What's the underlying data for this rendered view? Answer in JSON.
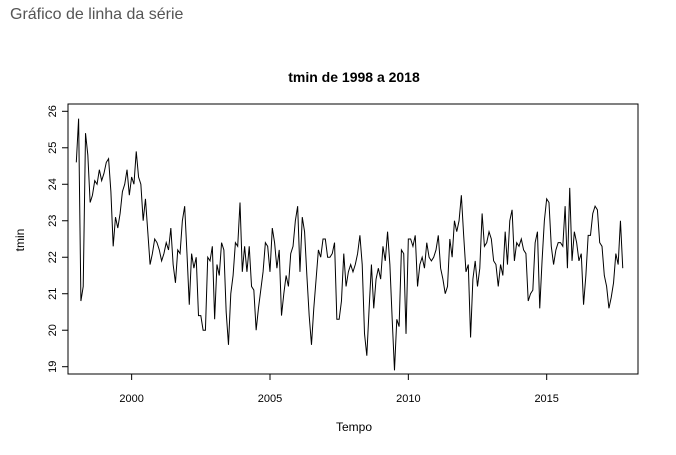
{
  "page": {
    "heading": "Gráfico de linha da série"
  },
  "chart_data": {
    "type": "line",
    "title": "tmin de 1998 a 2018",
    "xlabel": "Tempo",
    "ylabel": "tmin",
    "xlim": [
      1997.7,
      2018.3
    ],
    "ylim": [
      18.8,
      26.2
    ],
    "x_ticks": [
      2000,
      2005,
      2010,
      2015
    ],
    "y_ticks": [
      19,
      20,
      21,
      22,
      23,
      24,
      25,
      26
    ],
    "x_start": 1998.0,
    "x_step": 0.08333,
    "grid": false,
    "legend": "none",
    "series": [
      {
        "values": [
          24.6,
          25.8,
          20.8,
          21.2,
          25.4,
          24.8,
          23.5,
          23.7,
          24.1,
          24.0,
          24.4,
          24.1,
          24.3,
          24.6,
          24.7,
          23.8,
          22.3,
          23.1,
          22.8,
          23.2,
          23.8,
          24.0,
          24.4,
          23.7,
          24.2,
          24.0,
          24.9,
          24.2,
          24.0,
          23.0,
          23.6,
          22.7,
          21.8,
          22.1,
          22.5,
          22.4,
          22.2,
          21.9,
          22.1,
          22.4,
          22.2,
          22.8,
          21.8,
          21.3,
          22.2,
          22.1,
          23.0,
          23.4,
          22.1,
          20.7,
          22.1,
          21.7,
          22.0,
          20.4,
          20.4,
          20.0,
          20.0,
          22.0,
          21.9,
          22.3,
          20.3,
          21.8,
          21.5,
          22.4,
          22.2,
          20.5,
          19.6,
          21.0,
          21.5,
          22.4,
          22.3,
          23.5,
          21.6,
          22.3,
          21.6,
          22.3,
          21.2,
          21.1,
          20.0,
          20.6,
          21.1,
          21.6,
          22.4,
          22.3,
          21.6,
          22.8,
          22.4,
          21.7,
          22.2,
          20.4,
          21.0,
          21.5,
          21.2,
          22.1,
          22.3,
          23.0,
          23.4,
          21.6,
          23.1,
          22.7,
          21.5,
          20.4,
          19.6,
          20.6,
          21.4,
          22.2,
          22.0,
          22.5,
          22.5,
          22.0,
          22.0,
          22.1,
          22.4,
          20.3,
          20.3,
          20.8,
          22.1,
          21.2,
          21.6,
          21.8,
          21.6,
          21.8,
          22.1,
          22.6,
          21.8,
          19.9,
          19.3,
          20.6,
          21.8,
          20.6,
          21.4,
          21.7,
          21.4,
          22.3,
          21.9,
          22.7,
          21.8,
          20.3,
          18.9,
          20.3,
          20.1,
          22.2,
          22.1,
          19.9,
          22.5,
          22.5,
          22.3,
          22.6,
          21.2,
          21.8,
          22.0,
          21.7,
          22.4,
          22.0,
          21.9,
          22.0,
          22.2,
          22.6,
          21.7,
          21.4,
          21.0,
          21.2,
          22.5,
          22.0,
          23.0,
          22.7,
          23.0,
          23.7,
          22.6,
          21.6,
          21.8,
          19.8,
          21.4,
          21.9,
          21.2,
          21.7,
          23.2,
          22.3,
          22.4,
          22.7,
          22.5,
          21.9,
          21.8,
          21.2,
          21.8,
          21.5,
          22.7,
          21.8,
          23.0,
          23.3,
          21.9,
          22.4,
          22.3,
          22.5,
          22.2,
          22.1,
          20.8,
          21.0,
          21.1,
          22.4,
          22.7,
          20.6,
          21.9,
          23.0,
          23.6,
          23.5,
          22.3,
          21.8,
          22.2,
          22.4,
          22.4,
          22.3,
          23.4,
          21.7,
          23.9,
          21.9,
          22.7,
          22.4,
          21.9,
          22.1,
          20.7,
          21.5,
          22.6,
          22.6,
          23.2,
          23.4,
          23.3,
          22.4,
          22.3,
          21.5,
          21.2,
          20.6,
          20.9,
          21.3,
          22.1,
          21.8,
          23.0,
          21.7
        ]
      }
    ]
  }
}
